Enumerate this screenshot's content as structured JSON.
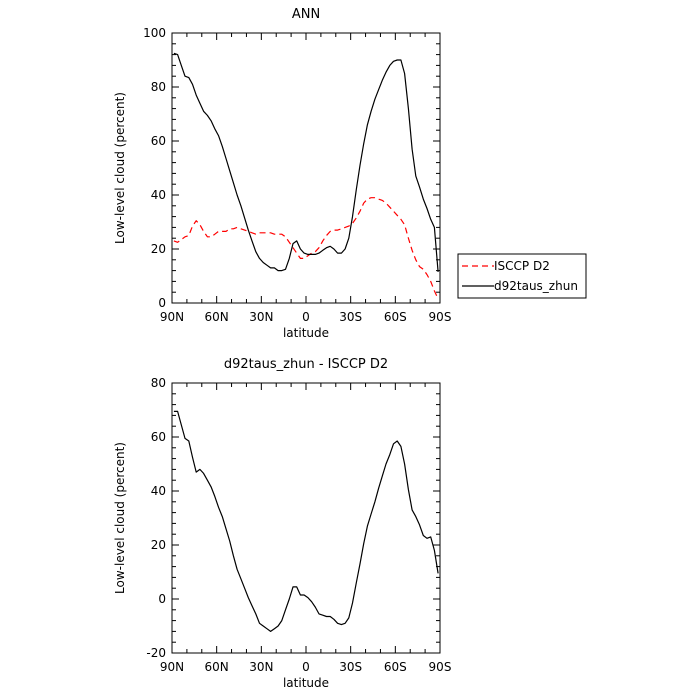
{
  "chart_data": [
    {
      "type": "line",
      "title": "ANN",
      "xlabel": "latitude",
      "ylabel": "Low-level cloud (percent)",
      "xlim": [
        90,
        -90
      ],
      "ylim": [
        0,
        100
      ],
      "xticks": [
        90,
        60,
        30,
        0,
        -30,
        -60,
        -90
      ],
      "xtick_labels": [
        "90N",
        "60N",
        "30N",
        "0",
        "30S",
        "60S",
        "90S"
      ],
      "yticks": [
        0,
        20,
        40,
        60,
        80,
        100
      ],
      "ytick_labels": [
        "0",
        "20",
        "40",
        "60",
        "80",
        "100"
      ],
      "legend_position": "right",
      "series": [
        {
          "name": "ISCCP D2",
          "color": "#ff0000",
          "dash": "dashed",
          "x": [
            88.75,
            86.25,
            83.75,
            81.25,
            78.75,
            76.25,
            73.75,
            71.25,
            68.75,
            66.25,
            63.75,
            61.25,
            58.75,
            56.25,
            53.75,
            51.25,
            48.75,
            46.25,
            43.75,
            41.25,
            38.75,
            36.25,
            33.75,
            31.25,
            28.75,
            26.25,
            23.75,
            21.25,
            18.75,
            16.25,
            13.75,
            11.25,
            8.75,
            6.25,
            3.75,
            1.25,
            -1.25,
            -3.75,
            -6.25,
            -8.75,
            -11.25,
            -13.75,
            -16.25,
            -18.75,
            -21.25,
            -23.75,
            -26.25,
            -28.75,
            -31.25,
            -33.75,
            -36.25,
            -38.75,
            -41.25,
            -43.75,
            -46.25,
            -48.75,
            -51.25,
            -53.75,
            -56.25,
            -58.75,
            -61.25,
            -63.75,
            -66.25,
            -68.75,
            -71.25,
            -73.75,
            -76.25,
            -78.75,
            -81.25,
            -83.75,
            -86.25,
            -88.75
          ],
          "values": [
            23,
            22.5,
            23.5,
            24.5,
            25,
            28.5,
            30.5,
            29,
            26.5,
            24.5,
            24.5,
            25.5,
            26.5,
            26.5,
            26.5,
            27.5,
            27.5,
            28,
            27.5,
            27,
            26.5,
            26,
            25.5,
            26,
            26,
            26,
            26,
            25.5,
            25.5,
            25.5,
            24.5,
            22.5,
            20.5,
            18.5,
            16.5,
            16.5,
            17.5,
            18.5,
            19,
            20.5,
            23,
            25,
            26.5,
            27,
            27,
            27.5,
            28,
            28.5,
            29.5,
            31.5,
            34,
            37,
            38.5,
            39,
            39,
            38.5,
            38,
            37,
            35.5,
            34,
            32.5,
            31,
            29,
            24,
            19.5,
            16,
            13.5,
            12.5,
            10.5,
            8,
            4.5,
            1.5
          ]
        },
        {
          "name": "d92taus_zhun",
          "color": "#000000",
          "dash": "solid",
          "x": [
            88.75,
            86.25,
            83.75,
            81.25,
            78.75,
            76.25,
            73.75,
            71.25,
            68.75,
            66.25,
            63.75,
            61.25,
            58.75,
            56.25,
            53.75,
            51.25,
            48.75,
            46.25,
            43.75,
            41.25,
            38.75,
            36.25,
            33.75,
            31.25,
            28.75,
            26.25,
            23.75,
            21.25,
            18.75,
            16.25,
            13.75,
            11.25,
            8.75,
            6.25,
            3.75,
            1.25,
            -1.25,
            -3.75,
            -6.25,
            -8.75,
            -11.25,
            -13.75,
            -16.25,
            -18.75,
            -21.25,
            -23.75,
            -26.25,
            -28.75,
            -31.25,
            -33.75,
            -36.25,
            -38.75,
            -41.25,
            -43.75,
            -46.25,
            -48.75,
            -51.25,
            -53.75,
            -56.25,
            -58.75,
            -61.25,
            -63.75,
            -66.25,
            -68.75,
            -71.25,
            -73.75,
            -76.25,
            -78.75,
            -81.25,
            -83.75,
            -86.25,
            -88.75
          ],
          "values": [
            92.5,
            92,
            88,
            84,
            83.5,
            81,
            77,
            74,
            71,
            69.5,
            67.5,
            64.5,
            62,
            58,
            53.5,
            49,
            44.5,
            40,
            36,
            31.5,
            27,
            23,
            19,
            16.5,
            15,
            14,
            13,
            13,
            12,
            12,
            12.5,
            16.5,
            22,
            23,
            20,
            18.5,
            18,
            18,
            18,
            18.5,
            19.5,
            20.5,
            21,
            20,
            18.5,
            18.5,
            20,
            24,
            32,
            42,
            51,
            59,
            66,
            71,
            75.5,
            79,
            82.5,
            85.5,
            88,
            89.5,
            90,
            90,
            85,
            72,
            57,
            47,
            43,
            38.5,
            35,
            31,
            28,
            11.5
          ]
        }
      ]
    },
    {
      "type": "line",
      "title": "d92taus_zhun - ISCCP D2",
      "xlabel": "latitude",
      "ylabel": "Low-level cloud (percent)",
      "xlim": [
        90,
        -90
      ],
      "ylim": [
        -20,
        80
      ],
      "xticks": [
        90,
        60,
        30,
        0,
        -30,
        -60,
        -90
      ],
      "xtick_labels": [
        "90N",
        "60N",
        "30N",
        "0",
        "30S",
        "60S",
        "90S"
      ],
      "yticks": [
        -20,
        0,
        20,
        40,
        60,
        80
      ],
      "ytick_labels": [
        "-20",
        "0",
        "20",
        "40",
        "60",
        "80"
      ],
      "series": [
        {
          "color": "#000000",
          "dash": "solid",
          "x": [
            88.75,
            86.25,
            83.75,
            81.25,
            78.75,
            76.25,
            73.75,
            71.25,
            68.75,
            66.25,
            63.75,
            61.25,
            58.75,
            56.25,
            53.75,
            51.25,
            48.75,
            46.25,
            43.75,
            41.25,
            38.75,
            36.25,
            33.75,
            31.25,
            28.75,
            26.25,
            23.75,
            21.25,
            18.75,
            16.25,
            13.75,
            11.25,
            8.75,
            6.25,
            3.75,
            1.25,
            -1.25,
            -3.75,
            -6.25,
            -8.75,
            -11.25,
            -13.75,
            -16.25,
            -18.75,
            -21.25,
            -23.75,
            -26.25,
            -28.75,
            -31.25,
            -33.75,
            -36.25,
            -38.75,
            -41.25,
            -43.75,
            -46.25,
            -48.75,
            -51.25,
            -53.75,
            -56.25,
            -58.75,
            -61.25,
            -63.75,
            -66.25,
            -68.75,
            -71.25,
            -73.75,
            -76.25,
            -78.75,
            -81.25,
            -83.75,
            -86.25,
            -88.75
          ],
          "values": [
            69.5,
            69.5,
            64.5,
            59.5,
            58.5,
            52.5,
            47,
            48,
            46.5,
            44,
            41.5,
            38,
            34,
            30.5,
            26,
            21.5,
            16,
            11,
            7.5,
            4,
            0.5,
            -2.5,
            -5.5,
            -9,
            -10,
            -11,
            -12,
            -11,
            -10,
            -8,
            -4,
            0,
            4.5,
            4.5,
            1.5,
            1.5,
            0.5,
            -1,
            -3,
            -5.5,
            -6,
            -6.5,
            -6.5,
            -7.5,
            -9,
            -9.5,
            -9,
            -7,
            -1.5,
            6,
            13,
            20.5,
            27,
            31.5,
            36,
            41,
            45.5,
            50,
            53.5,
            57.5,
            58.5,
            56.5,
            50,
            40.5,
            33,
            30.5,
            27.5,
            23.5,
            22.5,
            23,
            18,
            9.5
          ]
        }
      ]
    }
  ]
}
